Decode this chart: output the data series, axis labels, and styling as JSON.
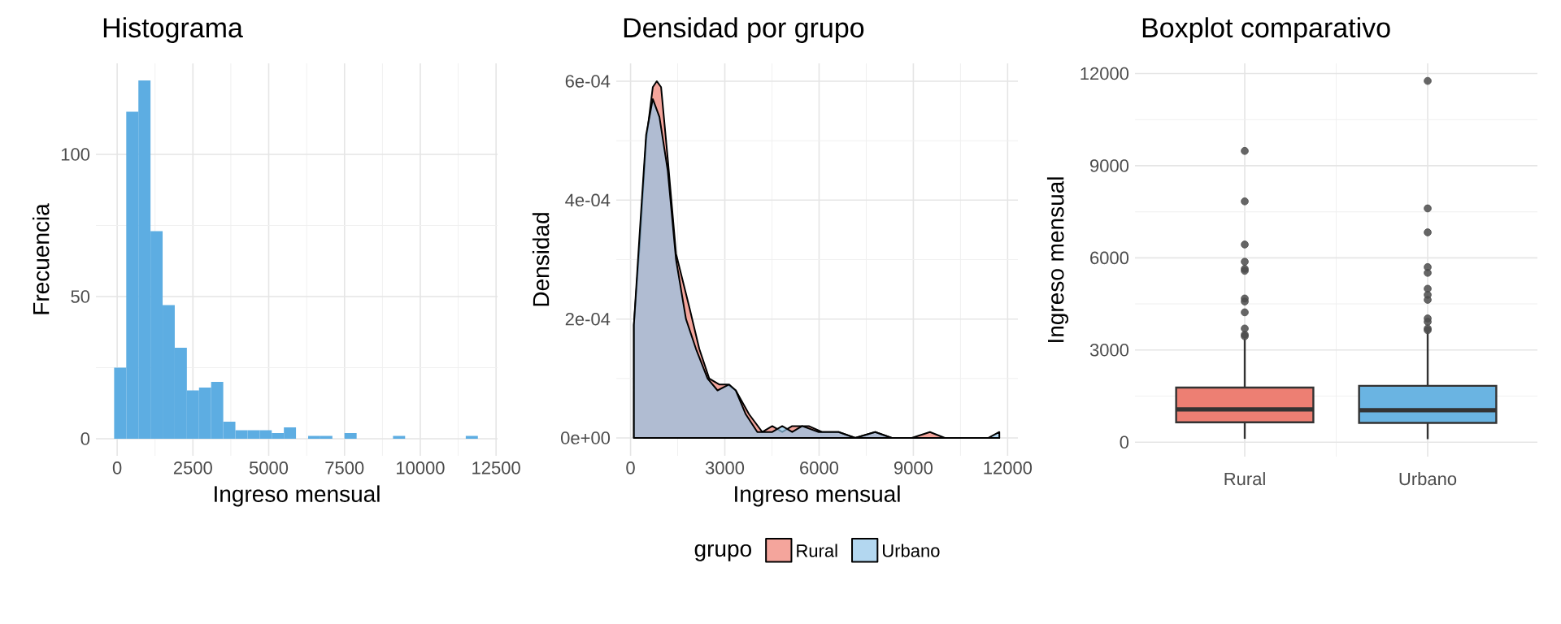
{
  "chart_data": [
    {
      "type": "histogram",
      "title": "Histograma",
      "xlabel": "Ingreso mensual",
      "ylabel": "Frecuencia",
      "bins": [
        -100,
        300,
        700,
        1100,
        1500,
        1900,
        2300,
        2700,
        3100,
        3500,
        3900,
        4300,
        4700,
        5100,
        5500,
        5900,
        6300,
        6700,
        7100,
        7500,
        7900,
        8300,
        8700,
        9100,
        9500,
        9900,
        10300,
        10700,
        11100,
        11500,
        11900
      ],
      "values": [
        25,
        115,
        126,
        73,
        47,
        32,
        17,
        18,
        20,
        6,
        3,
        3,
        3,
        2,
        4,
        0,
        1,
        1,
        0,
        2,
        0,
        0,
        0,
        1,
        0,
        0,
        0,
        0,
        0,
        1
      ],
      "color": "#5dade2",
      "xlim": [
        -700,
        12550
      ],
      "xticks": [
        0,
        2500,
        5000,
        7500,
        10000,
        12500
      ],
      "ylim": [
        -6,
        132
      ],
      "yticks": [
        0,
        50,
        100
      ],
      "grid": true
    },
    {
      "type": "area",
      "title": "Densidad por grupo",
      "xlabel": "Ingreso mensual",
      "ylabel": "Densidad",
      "legend_title": "grupo",
      "legend": "bottom",
      "series": [
        {
          "name": "Rural",
          "color": "#f4a59c",
          "x": [
            106,
            285,
            496,
            708,
            834,
            972,
            1183,
            1447,
            1870,
            2187,
            2503,
            2820,
            3084,
            3348,
            3771,
            4194,
            4510,
            4827,
            5144,
            5672,
            6095,
            6623,
            7151,
            7785,
            8313,
            8947,
            9528,
            10003,
            10743,
            11271,
            11736
          ],
          "values": [
            0.00019,
            0.00032,
            0.0005,
            0.00059,
            0.0006,
            0.00059,
            0.00047,
            0.00031,
            0.00022,
            0.00015,
            0.0001,
            9e-05,
            9e-05,
            8e-05,
            4e-05,
            1e-05,
            2e-05,
            1e-05,
            2e-05,
            2e-05,
            1e-05,
            1e-05,
            0,
            1e-05,
            0,
            0,
            1e-05,
            0,
            0,
            0,
            0
          ]
        },
        {
          "name": "Urbano",
          "color": "#93c6ea",
          "x": [
            106,
            285,
            496,
            708,
            919,
            1183,
            1447,
            1764,
            2081,
            2451,
            2768,
            3137,
            3348,
            3665,
            4035,
            4510,
            4827,
            5144,
            5461,
            5989,
            6623,
            7151,
            7785,
            8313,
            9528,
            10743,
            11377,
            11736
          ],
          "values": [
            0.00019,
            0.00034,
            0.00051,
            0.00057,
            0.00054,
            0.00045,
            0.0003,
            0.0002,
            0.00015,
            0.0001,
            8e-05,
            9e-05,
            8e-05,
            4e-05,
            1e-05,
            1e-05,
            2e-05,
            1e-05,
            2e-05,
            1e-05,
            1e-05,
            0,
            1e-05,
            0,
            0,
            0,
            0,
            1e-05
          ]
        }
      ],
      "xlim": [
        -454,
        12327
      ],
      "xticks": [
        0,
        3000,
        6000,
        9000,
        12000
      ],
      "ylim": [
        -3e-05,
        0.00063
      ],
      "yticks": [
        {
          "value": 0,
          "label": "0e+00"
        },
        {
          "value": 0.0002,
          "label": "2e-04"
        },
        {
          "value": 0.0004,
          "label": "4e-04"
        },
        {
          "value": 0.0006,
          "label": "6e-04"
        }
      ],
      "grid": true
    },
    {
      "type": "box",
      "title": "Boxplot comparativo",
      "ylabel": "Ingreso mensual",
      "categories": [
        "Rural",
        "Urbano"
      ],
      "colors": [
        "#ed7f73",
        "#6ab4e2"
      ],
      "boxes": [
        {
          "low": 110,
          "q1": 648,
          "median": 1065,
          "q3": 1779,
          "high": 3371,
          "outliers": [
            3448,
            3502,
            3700,
            4227,
            4578,
            4677,
            5577,
            5643,
            5874,
            6434,
            7839,
            9480
          ]
        },
        {
          "low": 99,
          "q1": 626,
          "median": 1043,
          "q3": 1834,
          "high": 3590,
          "outliers": [
            3645,
            3700,
            3920,
            4029,
            4633,
            4798,
            4995,
            5512,
            5698,
            6829,
            7609,
            11759
          ]
        }
      ],
      "ylim": [
        -470,
        12330
      ],
      "yticks": [
        0,
        3000,
        6000,
        9000,
        12000
      ],
      "grid": true
    }
  ]
}
